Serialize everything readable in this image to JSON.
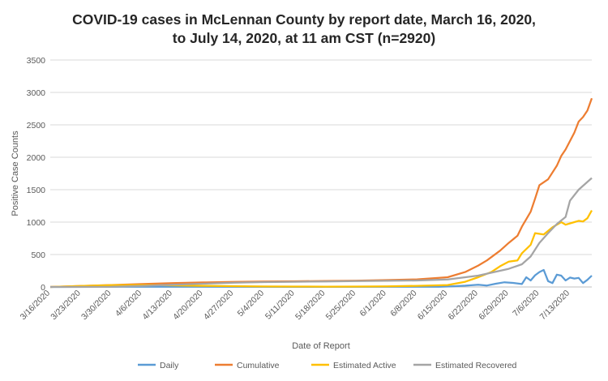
{
  "chart_data": {
    "type": "line",
    "title_lines": [
      "COVID-19 cases in McLennan County by report date, March 16, 2020,",
      "to July 14, 2020, at 11 am CST (n=2920)"
    ],
    "xlabel": "Date of Report",
    "ylabel": "Positive Case Counts",
    "ylim": [
      0,
      3500
    ],
    "yticks": [
      0,
      500,
      1000,
      1500,
      2000,
      2500,
      3000,
      3500
    ],
    "xlim": [
      "2020-03-16",
      "2020-07-14"
    ],
    "xtick_labels": [
      "3/16/2020",
      "3/23/2020",
      "3/30/2020",
      "4/6/2020",
      "4/13/2020",
      "4/20/2020",
      "4/27/2020",
      "5/4/2020",
      "5/11/2020",
      "5/18/2020",
      "5/25/2020",
      "6/1/2020",
      "6/8/2020",
      "6/15/2020",
      "6/22/2020",
      "6/29/2020",
      "7/6/2020",
      "7/13/2020"
    ],
    "xtick_dates": [
      "2020-03-16",
      "2020-03-23",
      "2020-03-30",
      "2020-04-06",
      "2020-04-13",
      "2020-04-20",
      "2020-04-27",
      "2020-05-04",
      "2020-05-11",
      "2020-05-18",
      "2020-05-25",
      "2020-06-01",
      "2020-06-08",
      "2020-06-15",
      "2020-06-22",
      "2020-06-29",
      "2020-07-06",
      "2020-07-13"
    ],
    "grid": "horizontal",
    "legend": "bottom",
    "series": [
      {
        "name": "Daily",
        "color": "#5B9BD5",
        "points": [
          [
            "2020-03-16",
            0
          ],
          [
            "2020-04-01",
            3
          ],
          [
            "2020-04-13",
            4
          ],
          [
            "2020-05-11",
            1
          ],
          [
            "2020-06-08",
            2
          ],
          [
            "2020-06-13",
            4
          ],
          [
            "2020-06-16",
            10
          ],
          [
            "2020-06-19",
            20
          ],
          [
            "2020-06-22",
            35
          ],
          [
            "2020-06-24",
            22
          ],
          [
            "2020-06-26",
            50
          ],
          [
            "2020-06-28",
            72
          ],
          [
            "2020-06-30",
            62
          ],
          [
            "2020-07-02",
            45
          ],
          [
            "2020-07-03",
            150
          ],
          [
            "2020-07-04",
            100
          ],
          [
            "2020-07-05",
            180
          ],
          [
            "2020-07-06",
            230
          ],
          [
            "2020-07-07",
            262
          ],
          [
            "2020-07-08",
            90
          ],
          [
            "2020-07-09",
            60
          ],
          [
            "2020-07-10",
            190
          ],
          [
            "2020-07-11",
            175
          ],
          [
            "2020-07-12",
            100
          ],
          [
            "2020-07-13",
            145
          ],
          [
            "2020-07-14",
            130
          ],
          [
            "2020-07-15",
            140
          ],
          [
            "2020-07-16",
            60
          ],
          [
            "2020-07-17",
            110
          ],
          [
            "2020-07-18",
            175
          ]
        ]
      },
      {
        "name": "Cumulative",
        "color": "#ED7D31",
        "points": [
          [
            "2020-03-16",
            0
          ],
          [
            "2020-03-23",
            15
          ],
          [
            "2020-03-30",
            30
          ],
          [
            "2020-04-06",
            45
          ],
          [
            "2020-04-13",
            60
          ],
          [
            "2020-04-20",
            70
          ],
          [
            "2020-04-27",
            78
          ],
          [
            "2020-05-04",
            85
          ],
          [
            "2020-05-11",
            88
          ],
          [
            "2020-05-18",
            92
          ],
          [
            "2020-05-25",
            98
          ],
          [
            "2020-06-01",
            106
          ],
          [
            "2020-06-08",
            118
          ],
          [
            "2020-06-15",
            150
          ],
          [
            "2020-06-19",
            230
          ],
          [
            "2020-06-22",
            330
          ],
          [
            "2020-06-24",
            410
          ],
          [
            "2020-06-27",
            560
          ],
          [
            "2020-06-29",
            680
          ],
          [
            "2020-07-01",
            790
          ],
          [
            "2020-07-02",
            930
          ],
          [
            "2020-07-04",
            1160
          ],
          [
            "2020-07-05",
            1360
          ],
          [
            "2020-07-06",
            1570
          ],
          [
            "2020-07-08",
            1660
          ],
          [
            "2020-07-10",
            1870
          ],
          [
            "2020-07-11",
            2020
          ],
          [
            "2020-07-12",
            2120
          ],
          [
            "2020-07-14",
            2380
          ],
          [
            "2020-07-15",
            2550
          ],
          [
            "2020-07-16",
            2620
          ],
          [
            "2020-07-17",
            2720
          ],
          [
            "2020-07-18",
            2910
          ]
        ]
      },
      {
        "name": "Estimated Active",
        "color": "#FFC000",
        "points": [
          [
            "2020-03-16",
            0
          ],
          [
            "2020-03-23",
            15
          ],
          [
            "2020-03-30",
            28
          ],
          [
            "2020-04-06",
            30
          ],
          [
            "2020-04-13",
            25
          ],
          [
            "2020-04-20",
            18
          ],
          [
            "2020-04-27",
            12
          ],
          [
            "2020-05-04",
            8
          ],
          [
            "2020-05-11",
            6
          ],
          [
            "2020-05-18",
            5
          ],
          [
            "2020-05-25",
            6
          ],
          [
            "2020-06-01",
            10
          ],
          [
            "2020-06-08",
            18
          ],
          [
            "2020-06-15",
            30
          ],
          [
            "2020-06-19",
            80
          ],
          [
            "2020-06-22",
            150
          ],
          [
            "2020-06-25",
            230
          ],
          [
            "2020-06-27",
            320
          ],
          [
            "2020-06-29",
            390
          ],
          [
            "2020-07-01",
            410
          ],
          [
            "2020-07-02",
            520
          ],
          [
            "2020-07-04",
            650
          ],
          [
            "2020-07-05",
            830
          ],
          [
            "2020-07-07",
            810
          ],
          [
            "2020-07-09",
            920
          ],
          [
            "2020-07-11",
            1000
          ],
          [
            "2020-07-12",
            960
          ],
          [
            "2020-07-14",
            1000
          ],
          [
            "2020-07-15",
            1020
          ],
          [
            "2020-07-16",
            1010
          ],
          [
            "2020-07-17",
            1060
          ],
          [
            "2020-07-18",
            1180
          ]
        ]
      },
      {
        "name": "Estimated Recovered",
        "color": "#A5A5A5",
        "points": [
          [
            "2020-03-16",
            0
          ],
          [
            "2020-03-30",
            2
          ],
          [
            "2020-04-06",
            15
          ],
          [
            "2020-04-13",
            35
          ],
          [
            "2020-04-20",
            50
          ],
          [
            "2020-04-27",
            65
          ],
          [
            "2020-05-04",
            75
          ],
          [
            "2020-05-11",
            80
          ],
          [
            "2020-05-18",
            85
          ],
          [
            "2020-05-25",
            90
          ],
          [
            "2020-06-01",
            95
          ],
          [
            "2020-06-08",
            100
          ],
          [
            "2020-06-15",
            115
          ],
          [
            "2020-06-22",
            175
          ],
          [
            "2020-06-29",
            280
          ],
          [
            "2020-07-02",
            350
          ],
          [
            "2020-07-04",
            470
          ],
          [
            "2020-07-06",
            680
          ],
          [
            "2020-07-08",
            830
          ],
          [
            "2020-07-10",
            970
          ],
          [
            "2020-07-12",
            1080
          ],
          [
            "2020-07-13",
            1330
          ],
          [
            "2020-07-15",
            1500
          ],
          [
            "2020-07-17",
            1620
          ],
          [
            "2020-07-18",
            1680
          ]
        ]
      }
    ]
  }
}
